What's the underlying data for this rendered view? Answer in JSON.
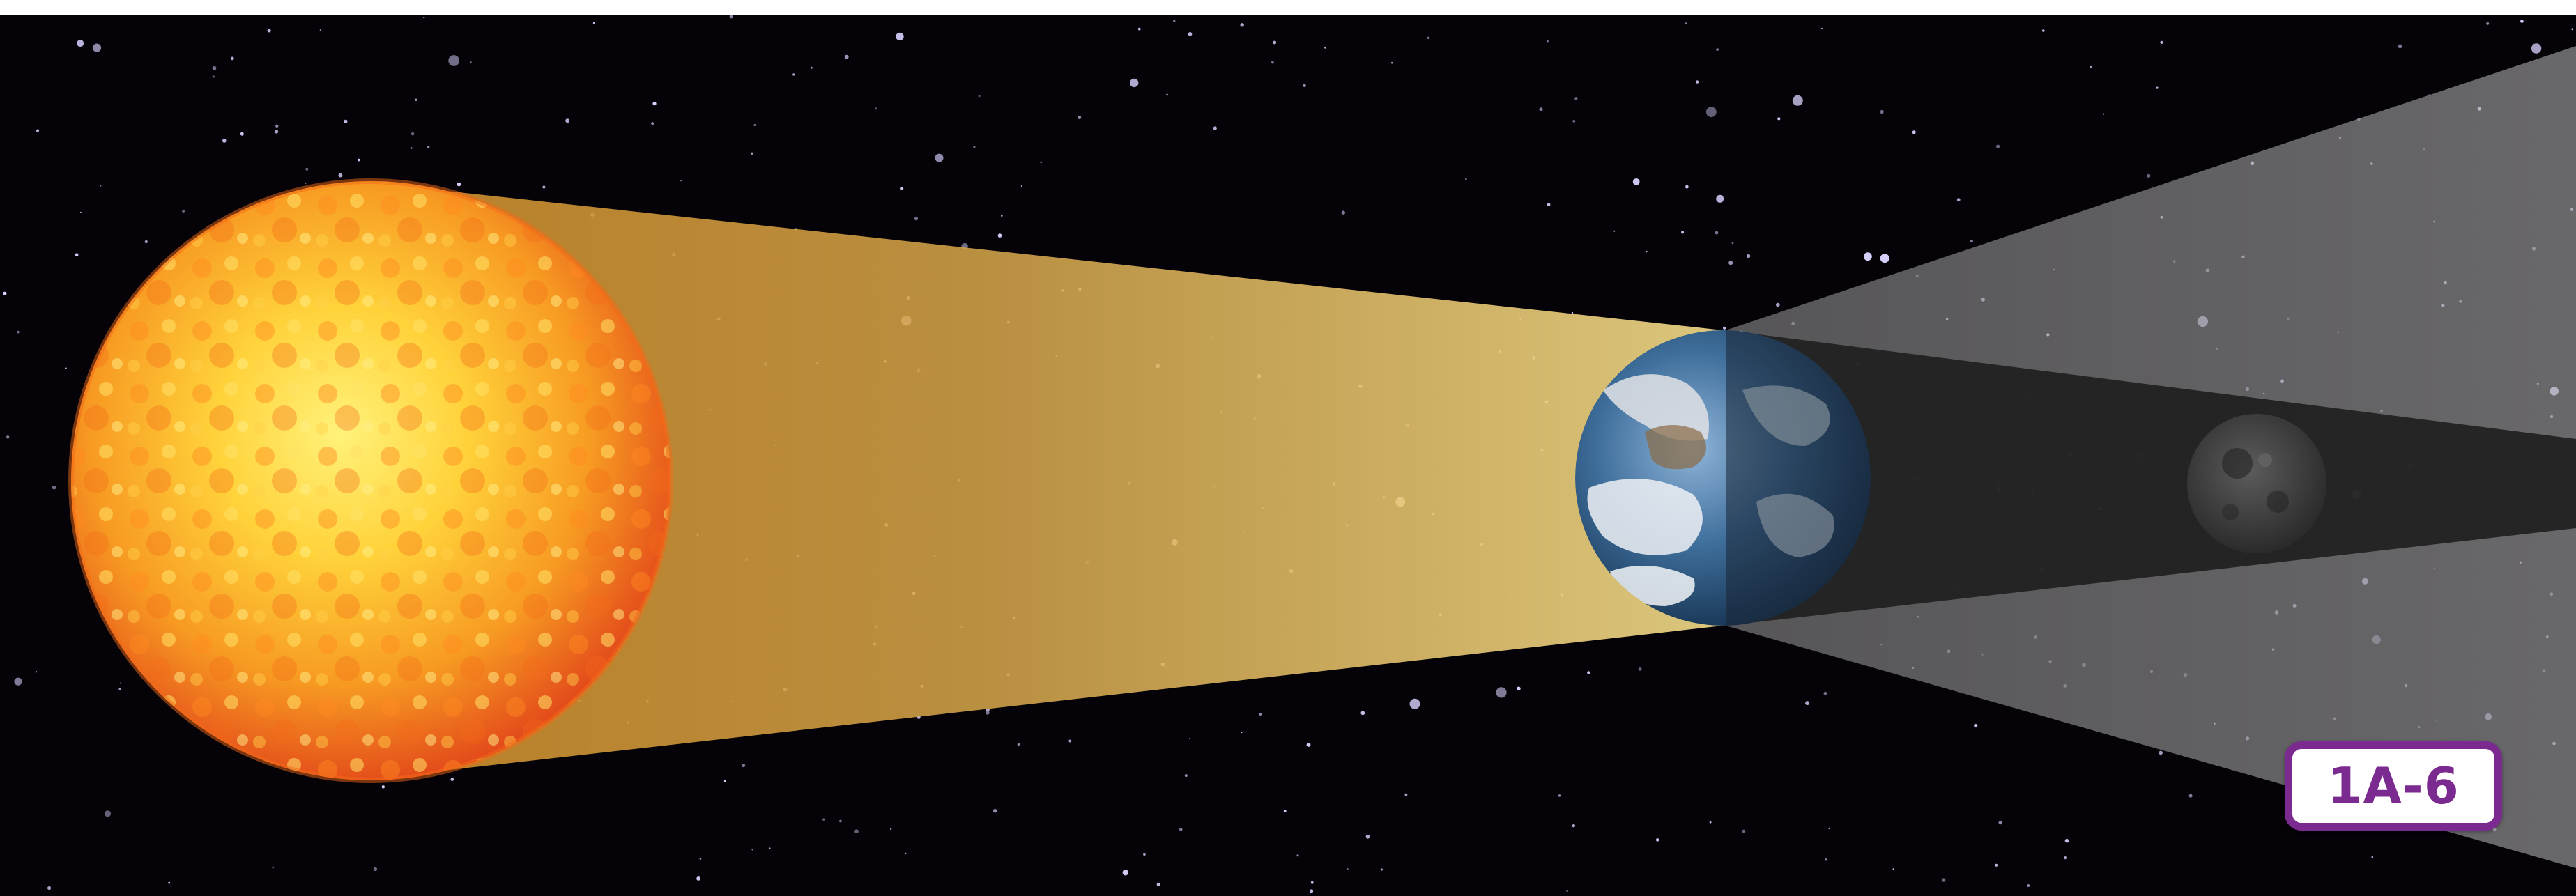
{
  "badge": {
    "label": "1A-6"
  },
  "colors": {
    "space": "#050208",
    "star": "#d9d2ff",
    "sun_core": "#ffd23a",
    "sun_edge": "#e2461a",
    "sunlight": "#e8b24a",
    "penumbra": "#9b9b9b",
    "umbra": "#2a2a2a",
    "badge_accent": "#7b2a8f"
  },
  "icons": {
    "sun": "sun-icon",
    "earth": "earth-icon",
    "moon": "moon-icon"
  }
}
